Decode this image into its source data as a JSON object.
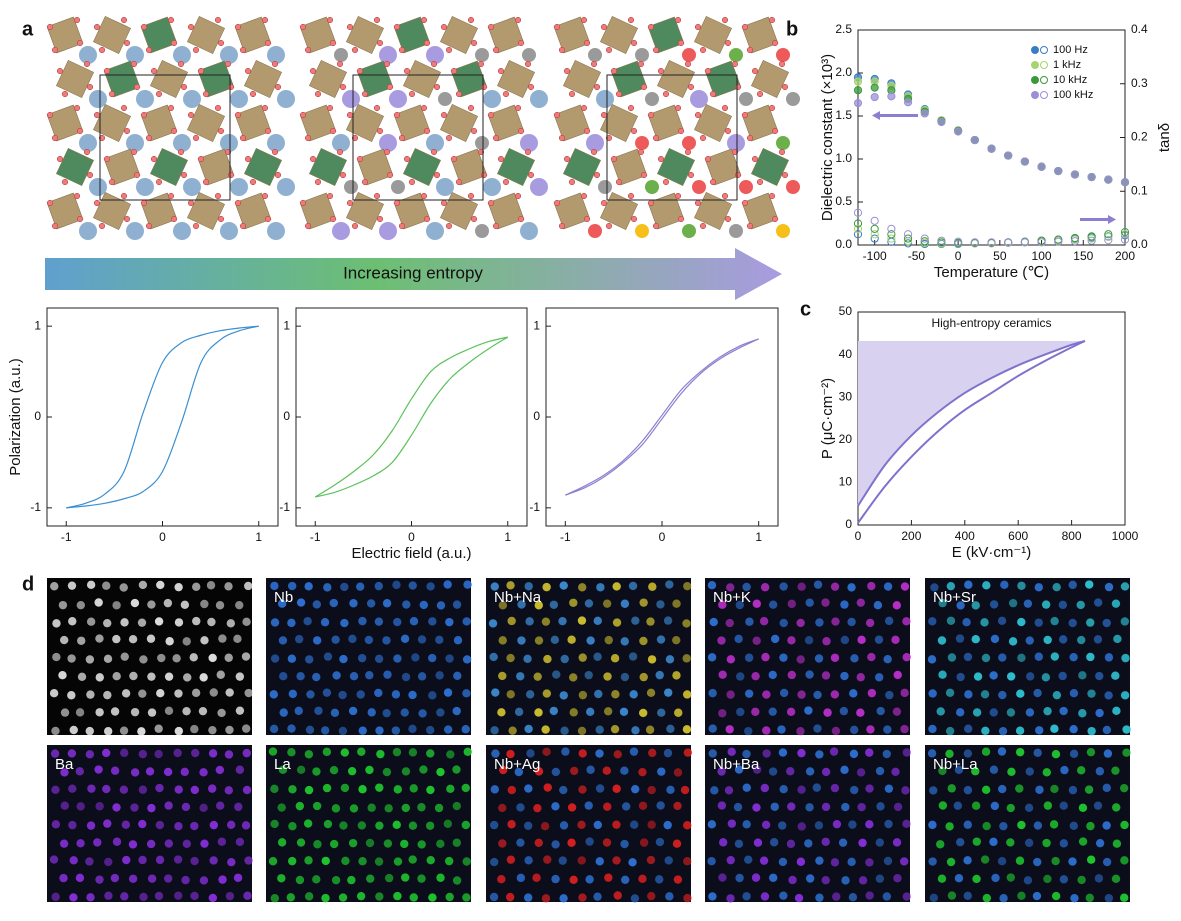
{
  "panel_labels": [
    "a",
    "b",
    "c",
    "d"
  ],
  "entropy_arrow": {
    "label": "Increasing entropy"
  },
  "chart_data": [
    {
      "type": "loop",
      "ylabel": "Polarization (a.u.)",
      "x": [
        -1,
        -0.8,
        -0.6,
        -0.4,
        -0.2,
        0,
        0.2,
        0.4,
        0.6,
        0.8,
        1
      ],
      "series": [
        {
          "color": "#3b8fd0",
          "values": [
            -1,
            -0.95,
            -0.85,
            -0.6,
            0.05,
            0.6,
            0.82,
            0.9,
            0.95,
            0.98,
            1
          ]
        },
        {
          "color": "#3b8fd0",
          "values": [
            -1,
            -0.98,
            -0.95,
            -0.9,
            -0.82,
            -0.6,
            -0.05,
            0.6,
            0.85,
            0.95,
            1
          ]
        }
      ],
      "xlim": [
        -1.2,
        1.2
      ],
      "ylim": [
        -1.2,
        1.2
      ],
      "xticks": [
        -1,
        0,
        1
      ],
      "yticks": [
        -1,
        0,
        1
      ]
    },
    {
      "type": "loop",
      "xlabel": "Electric field (a.u.)",
      "x": [
        -1,
        -0.8,
        -0.6,
        -0.4,
        -0.2,
        0,
        0.2,
        0.4,
        0.6,
        0.8,
        1
      ],
      "series": [
        {
          "color": "#5cc25a",
          "values": [
            -0.88,
            -0.75,
            -0.6,
            -0.42,
            -0.15,
            0.2,
            0.5,
            0.65,
            0.75,
            0.83,
            0.88
          ]
        },
        {
          "color": "#5cc25a",
          "values": [
            -0.88,
            -0.83,
            -0.75,
            -0.65,
            -0.5,
            -0.2,
            0.15,
            0.42,
            0.6,
            0.75,
            0.88
          ]
        }
      ],
      "xlim": [
        -1.2,
        1.2
      ],
      "ylim": [
        -1.2,
        1.2
      ],
      "xticks": [
        -1,
        0,
        1
      ],
      "yticks": [
        -1,
        0,
        1
      ]
    },
    {
      "type": "loop",
      "x": [
        -1,
        -0.8,
        -0.6,
        -0.4,
        -0.2,
        0,
        0.2,
        0.4,
        0.6,
        0.8,
        1
      ],
      "series": [
        {
          "color": "#8a7fd0",
          "values": [
            -0.86,
            -0.76,
            -0.64,
            -0.48,
            -0.26,
            0.02,
            0.3,
            0.5,
            0.66,
            0.78,
            0.86
          ]
        },
        {
          "color": "#8a7fd0",
          "values": [
            -0.86,
            -0.78,
            -0.66,
            -0.5,
            -0.3,
            -0.02,
            0.26,
            0.48,
            0.64,
            0.76,
            0.86
          ]
        }
      ],
      "xlim": [
        -1.2,
        1.2
      ],
      "ylim": [
        -1.2,
        1.2
      ],
      "xticks": [
        -1,
        0,
        1
      ],
      "yticks": [
        -1,
        0,
        1
      ]
    },
    {
      "type": "scatter",
      "xlabel": "Temperature (℃)",
      "ylabel": "Dielectric constant (×10³)",
      "y2label": "tanδ",
      "legend": "upper right",
      "x": [
        -120,
        -100,
        -80,
        -60,
        -40,
        -20,
        0,
        20,
        40,
        60,
        80,
        100,
        120,
        140,
        160,
        180,
        200
      ],
      "series": [
        {
          "name": "100 Hz",
          "color": "#3a7dc4",
          "values": [
            1.95,
            1.93,
            1.88,
            1.75,
            1.58,
            1.45,
            1.33,
            1.22,
            1.12,
            1.04,
            0.97,
            0.91,
            0.86,
            0.82,
            0.79,
            0.76,
            0.73
          ]
        },
        {
          "name": "1 kHz",
          "color": "#a6d46e",
          "values": [
            1.9,
            1.9,
            1.85,
            1.73,
            1.57,
            1.45,
            1.33,
            1.22,
            1.12,
            1.04,
            0.97,
            0.91,
            0.86,
            0.82,
            0.79,
            0.76,
            0.73
          ]
        },
        {
          "name": "10 kHz",
          "color": "#3a9a3a",
          "values": [
            1.8,
            1.83,
            1.8,
            1.7,
            1.55,
            1.44,
            1.33,
            1.22,
            1.12,
            1.04,
            0.97,
            0.91,
            0.86,
            0.82,
            0.79,
            0.76,
            0.73
          ]
        },
        {
          "name": "100 kHz",
          "color": "#9b8fd6",
          "values": [
            1.65,
            1.72,
            1.73,
            1.66,
            1.53,
            1.43,
            1.32,
            1.22,
            1.12,
            1.04,
            0.97,
            0.91,
            0.86,
            0.82,
            0.79,
            0.76,
            0.73
          ]
        },
        {
          "color": "#3a7dc4",
          "axis": "y2",
          "values": [
            0.02,
            0.012,
            0.006,
            0.003,
            0.002,
            0.002,
            0.002,
            0.003,
            0.004,
            0.005,
            0.006,
            0.008,
            0.01,
            0.012,
            0.014,
            0.016,
            0.018
          ]
        },
        {
          "color": "#a6d46e",
          "axis": "y2",
          "values": [
            0.03,
            0.02,
            0.012,
            0.007,
            0.004,
            0.003,
            0.003,
            0.003,
            0.003,
            0.004,
            0.005,
            0.006,
            0.008,
            0.01,
            0.012,
            0.015,
            0.02
          ]
        },
        {
          "color": "#3a9a3a",
          "axis": "y2",
          "values": [
            0.04,
            0.03,
            0.02,
            0.012,
            0.007,
            0.005,
            0.004,
            0.004,
            0.004,
            0.005,
            0.006,
            0.008,
            0.01,
            0.013,
            0.016,
            0.02,
            0.024
          ]
        },
        {
          "color": "#9b8fd6",
          "axis": "y2",
          "values": [
            0.06,
            0.045,
            0.03,
            0.02,
            0.012,
            0.008,
            0.006,
            0.005,
            0.005,
            0.005,
            0.005,
            0.005,
            0.006,
            0.007,
            0.008,
            0.009,
            0.01
          ]
        }
      ],
      "xlim": [
        -120,
        200
      ],
      "ylim": [
        0,
        2.5
      ],
      "y2lim": [
        0,
        0.4
      ],
      "xticks": [
        -100,
        -50,
        0,
        50,
        100,
        150,
        200
      ],
      "yticks": [
        {
          "value": 0,
          "label": "0.0"
        },
        0.5,
        {
          "value": 1,
          "label": "1.0"
        },
        1.5,
        {
          "value": 2,
          "label": "2.0"
        },
        2.5
      ],
      "y2ticks": [
        {
          "value": 0,
          "label": "0.0"
        },
        0.1,
        0.2,
        0.3,
        0.4
      ]
    },
    {
      "type": "loop",
      "title": "High-entropy ceramics",
      "xlabel": "E (kV·cm⁻¹)",
      "ylabel": "P (μC·cm⁻²)",
      "fill_color": "#d8d2f0",
      "x": [
        0,
        100,
        200,
        300,
        400,
        500,
        600,
        700,
        800,
        850
      ],
      "series": [
        {
          "color": "#7f72cc",
          "values": [
            4.5,
            14,
            21,
            26.5,
            31,
            34.5,
            37.5,
            40,
            42.3,
            43.2
          ]
        },
        {
          "color": "#7f72cc",
          "values": [
            0.5,
            9,
            16,
            22,
            27,
            31,
            35,
            38.5,
            41.7,
            43.2
          ]
        }
      ],
      "xlim": [
        0,
        1000
      ],
      "ylim": [
        0,
        50
      ],
      "xticks": [
        0,
        200,
        400,
        600,
        800,
        1000
      ],
      "yticks": [
        0,
        10,
        20,
        30,
        40,
        50
      ]
    }
  ],
  "eds_maps": [
    {
      "colors": [
        "#e8e8e8"
      ]
    },
    {
      "label": "Nb",
      "colors": [
        "#2f74d8"
      ]
    },
    {
      "label": "Nb+Na",
      "colors": [
        "#3f8fd8",
        "#d8c830"
      ]
    },
    {
      "label": "Nb+K",
      "colors": [
        "#2f74d8",
        "#c030d0"
      ]
    },
    {
      "label": "Nb+Sr",
      "colors": [
        "#2f74d8",
        "#30c8d8"
      ]
    },
    {
      "label": "Ba",
      "colors": [
        "#8a30e0"
      ]
    },
    {
      "label": "La",
      "colors": [
        "#20d030"
      ]
    },
    {
      "label": "Nb+Ag",
      "colors": [
        "#2f74d8",
        "#e02020"
      ]
    },
    {
      "label": "Nb+Ba",
      "colors": [
        "#2f74d8",
        "#8a30e0"
      ]
    },
    {
      "label": "Nb+La",
      "colors": [
        "#2f74d8",
        "#20d030"
      ]
    }
  ]
}
